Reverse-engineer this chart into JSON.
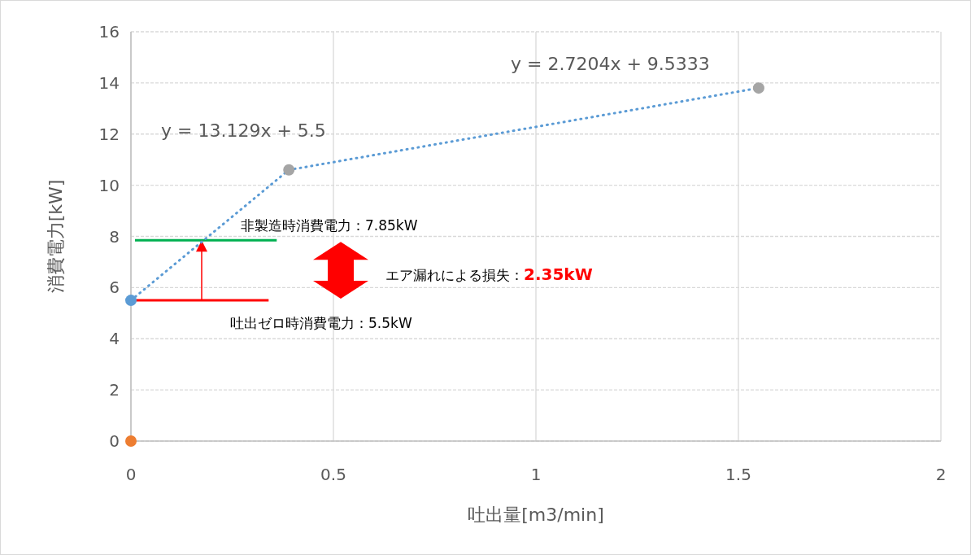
{
  "chart_data": {
    "type": "scatter",
    "xlabel": "吐出量[m3/min]",
    "ylabel": "消費電力[kW]",
    "xlim": [
      0,
      2
    ],
    "xticks": [
      0,
      0.5,
      1,
      1.5,
      2
    ],
    "ylim": [
      0,
      16
    ],
    "yticks": [
      0,
      2,
      4,
      6,
      8,
      10,
      12,
      14,
      16
    ],
    "grid": true,
    "marker": "circle",
    "series": [
      {
        "type": "line",
        "color": "#5b9bd5",
        "x": [
          0,
          0.39
        ],
        "values": [
          5.5,
          10.6
        ],
        "line_style": "dotted",
        "marker": "none"
      },
      {
        "type": "line",
        "color": "#5b9bd5",
        "x": [
          0.39,
          1.55
        ],
        "values": [
          10.6,
          13.8
        ],
        "line_style": "dotted",
        "marker": "none"
      },
      {
        "color": "#5b9bd5",
        "x": [
          0
        ],
        "values": [
          5.5
        ]
      },
      {
        "color": "#a5a5a5",
        "x": [
          0.39,
          1.55
        ],
        "values": [
          10.6,
          13.8
        ]
      },
      {
        "color": "#ed7d31",
        "x": [
          0
        ],
        "values": [
          0
        ]
      }
    ],
    "ref_lines": [
      {
        "axis": "y",
        "value": 7.85,
        "label": "非製造時消費電力：7.85kW",
        "color": "#00b050"
      },
      {
        "axis": "y",
        "value": 5.5,
        "label": "吐出ゼロ時消費電力：5.5kW",
        "color": "#ff0000"
      }
    ],
    "annotations": [
      "y = 13.129x + 5.5",
      "y = 2.7204x + 9.5333",
      "エア漏れによる損失：**2.35kW**"
    ]
  }
}
